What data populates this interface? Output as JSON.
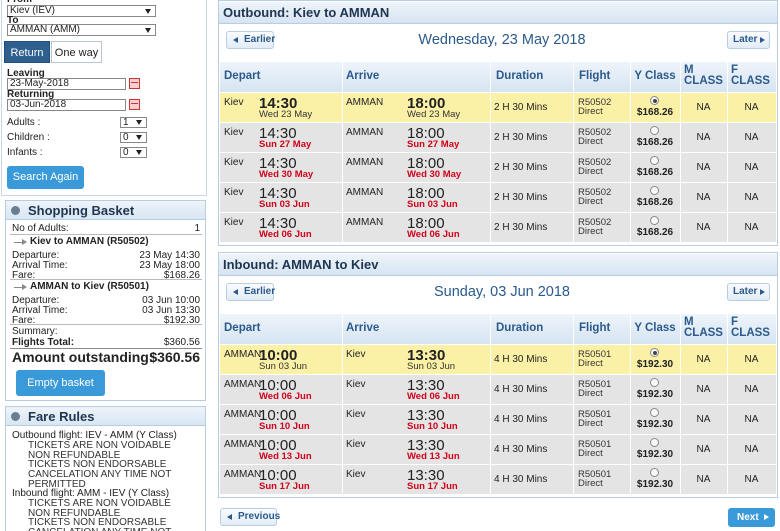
{
  "search": {
    "from_label": "From",
    "from": "Kiev (IEV)",
    "to_label": "To",
    "to": "AMMAN (AMM)",
    "tabs": [
      "Return",
      "One way"
    ],
    "leaving_label": "Leaving",
    "leaving": "23-May-2018",
    "returning_label": "Returning",
    "returning": "03-Jun-2018",
    "passengers": [
      {
        "label": "Adults :",
        "value": "1"
      },
      {
        "label": "Children :",
        "value": "0"
      },
      {
        "label": "Infants :",
        "value": "0"
      }
    ],
    "button": "Search Again"
  },
  "basket": {
    "title": "Shopping Basket",
    "adults_label": "No of Adults:",
    "adults": "1",
    "legs": [
      {
        "title": "Kiev to AMMAN (R50502)",
        "lines": [
          {
            "label": "Departure:",
            "value": "23 May 14:30"
          },
          {
            "label": "Arrival Time:",
            "value": "23 May 18:00"
          },
          {
            "label": "Fare:",
            "value": "$168.26"
          }
        ]
      },
      {
        "title": "AMMAN to Kiev (R50501)",
        "lines": [
          {
            "label": "Departure:",
            "value": "03 Jun 10:00"
          },
          {
            "label": "Arrival Time:",
            "value": "03 Jun 13:30"
          },
          {
            "label": "Fare:",
            "value": "$192.30"
          }
        ]
      }
    ],
    "summary_label": "Summary:",
    "total_label": "Flights Total:",
    "total": "$360.56",
    "outstanding_label": "Amount outstanding:",
    "outstanding": "$360.56",
    "button": "Empty basket"
  },
  "fare_rules": {
    "title": "Fare Rules",
    "flights": [
      {
        "label": "Outbound flight: IEV - AMM (Y Class)",
        "rules": [
          "TICKETS ARE NON VOIDABLE NON REFUNDABLE",
          "TICKETS NON ENDORSABLE",
          "CANCELATION ANY TIME NOT PERMITTED"
        ]
      },
      {
        "label": "Inbound flight: AMM - IEV (Y Class)",
        "rules": [
          "TICKETS ARE NON VOIDABLE NON REFUNDABLE",
          "TICKETS NON ENDORSABLE",
          "CANCELATION ANY TIME NOT PERMITTED"
        ]
      }
    ]
  },
  "panels": [
    {
      "title": "Outbound: Kiev to AMMAN",
      "earlier": "Earlier",
      "date": "Wednesday, 23 May 2018",
      "later": "Later",
      "headers": [
        "Depart",
        "Arrive",
        "Duration",
        "Flight",
        "Y Class",
        "M CLASS",
        "F CLASS"
      ],
      "selected_row": 0,
      "rows": [
        {
          "from": "Kiev",
          "dep_time": "14:30",
          "dep_date": "Wed 23 May",
          "to": "AMMAN",
          "arr_time": "18:00",
          "arr_date": "Wed 23 May",
          "duration": "2 H 30 Mins",
          "flight": "R50502",
          "flight_type": "Direct",
          "fare": "$168.26",
          "m": "NA",
          "f": "NA"
        },
        {
          "from": "Kiev",
          "dep_time": "14:30",
          "dep_date": "Sun 27 May",
          "to": "AMMAN",
          "arr_time": "18:00",
          "arr_date": "Sun 27 May",
          "duration": "2 H 30 Mins",
          "flight": "R50502",
          "flight_type": "Direct",
          "fare": "$168.26",
          "m": "NA",
          "f": "NA"
        },
        {
          "from": "Kiev",
          "dep_time": "14:30",
          "dep_date": "Wed 30 May",
          "to": "AMMAN",
          "arr_time": "18:00",
          "arr_date": "Wed 30 May",
          "duration": "2 H 30 Mins",
          "flight": "R50502",
          "flight_type": "Direct",
          "fare": "$168.26",
          "m": "NA",
          "f": "NA"
        },
        {
          "from": "Kiev",
          "dep_time": "14:30",
          "dep_date": "Sun 03 Jun",
          "to": "AMMAN",
          "arr_time": "18:00",
          "arr_date": "Sun 03 Jun",
          "duration": "2 H 30 Mins",
          "flight": "R50502",
          "flight_type": "Direct",
          "fare": "$168.26",
          "m": "NA",
          "f": "NA"
        },
        {
          "from": "Kiev",
          "dep_time": "14:30",
          "dep_date": "Wed 06 Jun",
          "to": "AMMAN",
          "arr_time": "18:00",
          "arr_date": "Wed 06 Jun",
          "duration": "2 H 30 Mins",
          "flight": "R50502",
          "flight_type": "Direct",
          "fare": "$168.26",
          "m": "NA",
          "f": "NA"
        }
      ]
    },
    {
      "title": "Inbound: AMMAN to Kiev",
      "earlier": "Earlier",
      "date": "Sunday, 03 Jun 2018",
      "later": "Later",
      "headers": [
        "Depart",
        "Arrive",
        "Duration",
        "Flight",
        "Y Class",
        "M CLASS",
        "F CLASS"
      ],
      "selected_row": 0,
      "rows": [
        {
          "from": "AMMAN",
          "dep_time": "10:00",
          "dep_date": "Sun 03 Jun",
          "to": "Kiev",
          "arr_time": "13:30",
          "arr_date": "Sun 03 Jun",
          "duration": "4 H 30 Mins",
          "flight": "R50501",
          "flight_type": "Direct",
          "fare": "$192.30",
          "m": "NA",
          "f": "NA"
        },
        {
          "from": "AMMAN",
          "dep_time": "10:00",
          "dep_date": "Wed 06 Jun",
          "to": "Kiev",
          "arr_time": "13:30",
          "arr_date": "Wed 06 Jun",
          "duration": "4 H 30 Mins",
          "flight": "R50501",
          "flight_type": "Direct",
          "fare": "$192.30",
          "m": "NA",
          "f": "NA"
        },
        {
          "from": "AMMAN",
          "dep_time": "10:00",
          "dep_date": "Sun 10 Jun",
          "to": "Kiev",
          "arr_time": "13:30",
          "arr_date": "Sun 10 Jun",
          "duration": "4 H 30 Mins",
          "flight": "R50501",
          "flight_type": "Direct",
          "fare": "$192.30",
          "m": "NA",
          "f": "NA"
        },
        {
          "from": "AMMAN",
          "dep_time": "10:00",
          "dep_date": "Wed 13 Jun",
          "to": "Kiev",
          "arr_time": "13:30",
          "arr_date": "Wed 13 Jun",
          "duration": "4 H 30 Mins",
          "flight": "R50501",
          "flight_type": "Direct",
          "fare": "$192.30",
          "m": "NA",
          "f": "NA"
        },
        {
          "from": "AMMAN",
          "dep_time": "10:00",
          "dep_date": "Sun 17 Jun",
          "to": "Kiev",
          "arr_time": "13:30",
          "arr_date": "Sun 17 Jun",
          "duration": "4 H 30 Mins",
          "flight": "R50501",
          "flight_type": "Direct",
          "fare": "$192.30",
          "m": "NA",
          "f": "NA"
        }
      ]
    }
  ],
  "nav": {
    "previous": "Previous",
    "next": "Next"
  }
}
